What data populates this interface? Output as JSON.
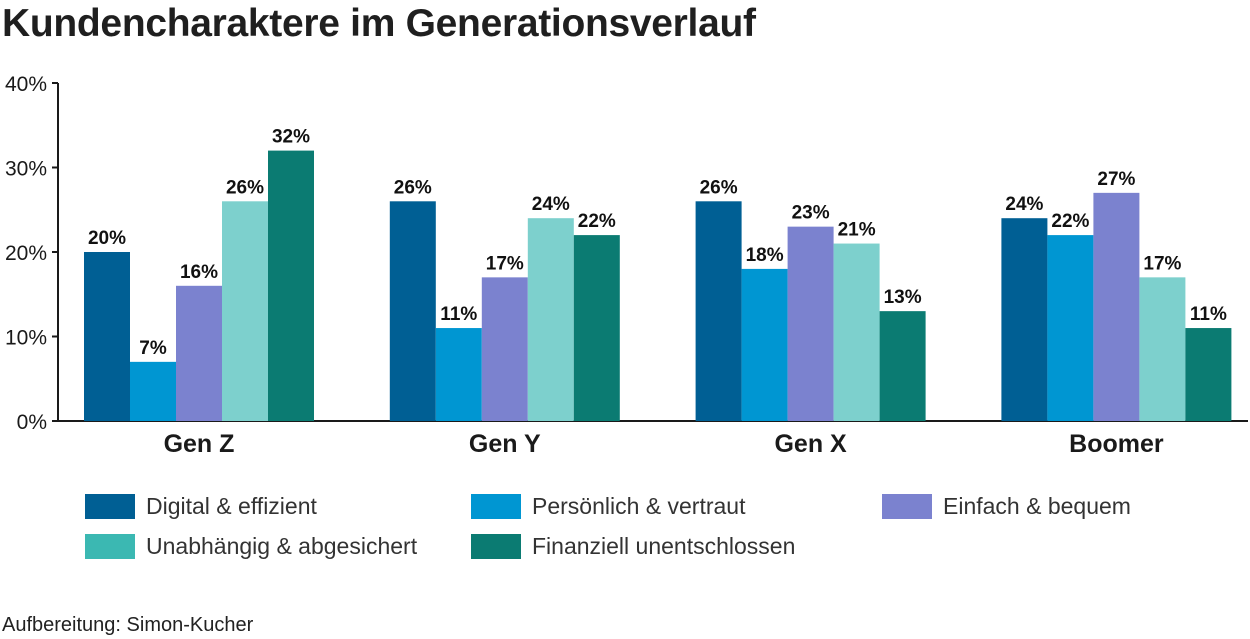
{
  "title": "Kundencharaktere im Generationsverlauf",
  "source": "Aufbereitung: Simon-Kucher",
  "chart_data": {
    "type": "bar",
    "categories": [
      "Gen Z",
      "Gen Y",
      "Gen X",
      "Boomer"
    ],
    "series": [
      {
        "name": "Digital & effizient",
        "color": "#005f94",
        "values": [
          20,
          26,
          26,
          24
        ],
        "labels": [
          "20%",
          "26%",
          "26%",
          "24%"
        ]
      },
      {
        "name": "Persönlich & vertraut",
        "color": "#0096d2",
        "values": [
          7,
          11,
          18,
          22
        ],
        "labels": [
          "7%",
          "11%",
          "18%",
          "22%"
        ]
      },
      {
        "name": "Einfach & bequem",
        "color": "#7b82cf",
        "values": [
          16,
          17,
          23,
          27
        ],
        "labels": [
          "16%",
          "17%",
          "23%",
          "27%"
        ]
      },
      {
        "name": "Unabhängig & abgesichert",
        "color": "#7dd0cd",
        "legend_color": "#3bb8b2",
        "values": [
          26,
          24,
          21,
          17
        ],
        "labels": [
          "26%",
          "24%",
          "21%",
          "17%"
        ]
      },
      {
        "name": "Finanziell unentschlossen",
        "color": "#0b7b72",
        "values": [
          32,
          22,
          13,
          11
        ],
        "labels": [
          "32%",
          "22%",
          "13%",
          "11%"
        ]
      }
    ],
    "ylim": [
      0,
      40
    ],
    "yticks": [
      0,
      10,
      20,
      30,
      40
    ],
    "ytick_labels": [
      "0%",
      "10%",
      "20%",
      "30%",
      "40%"
    ],
    "grid": false,
    "legend_position": "bottom"
  }
}
